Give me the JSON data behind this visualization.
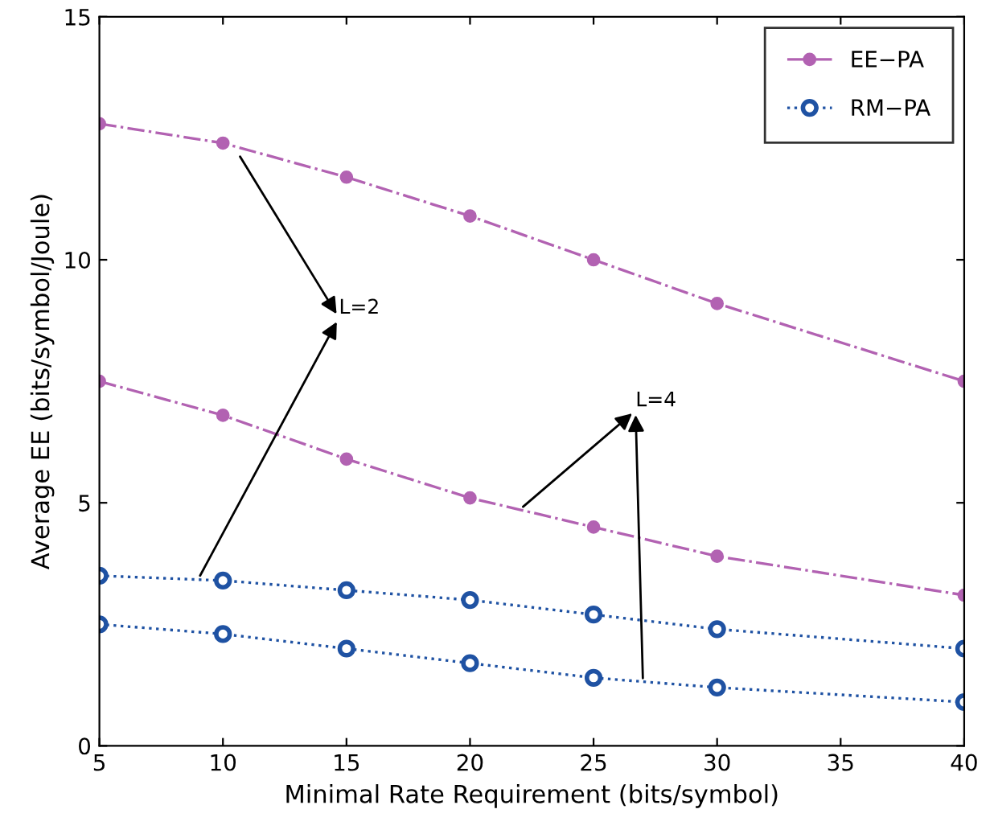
{
  "chart_data": {
    "type": "line",
    "xlabel": "Minimal Rate Requirement (bits/symbol)",
    "ylabel": "Average EE (bits/symbol/Joule)",
    "x": [
      5,
      10,
      15,
      20,
      25,
      30,
      40
    ],
    "series": [
      {
        "name": "EE−PA",
        "color": "#b262b2",
        "marker": "circle",
        "line_style": "dashdot",
        "values": [
          12.8,
          12.4,
          11.7,
          10.9,
          10.0,
          9.1,
          7.5
        ]
      },
      {
        "color": "#b262b2",
        "marker": "circle",
        "line_style": "dashdot",
        "values": [
          7.5,
          6.8,
          5.9,
          5.1,
          4.5,
          3.9,
          3.1
        ]
      },
      {
        "name": "RM−PA",
        "color": "#1f52a3",
        "marker": "circle_open",
        "line_style": "dotted",
        "values": [
          3.5,
          3.4,
          3.2,
          3.0,
          2.7,
          2.4,
          2.0
        ]
      },
      {
        "color": "#1f52a3",
        "marker": "circle_open",
        "line_style": "dotted",
        "values": [
          2.5,
          2.3,
          2.0,
          1.7,
          1.4,
          1.2,
          0.9
        ]
      }
    ],
    "annotations": [
      {
        "text": "L=2",
        "x": 10.6,
        "y": 12.2
      },
      {
        "text": "L=4",
        "x": 27,
        "y": 1.3
      }
    ],
    "xlim": [
      5,
      40
    ],
    "ylim": [
      0,
      15
    ],
    "xticks": [
      5,
      10,
      15,
      20,
      25,
      30,
      35,
      40
    ],
    "yticks": [
      0,
      5,
      10,
      15
    ],
    "grid": false,
    "legend": "top right"
  }
}
